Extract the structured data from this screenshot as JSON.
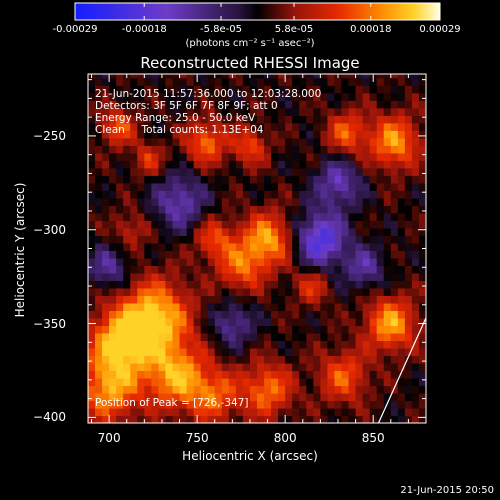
{
  "chart_data": {
    "type": "heatmap",
    "title": "Reconstructed RHESSI Image",
    "xlabel": "Heliocentric X (arcsec)",
    "ylabel": "Heliocentric Y (arcsec)",
    "xlim": [
      688,
      880
    ],
    "ylim": [
      -403,
      -217
    ],
    "xticks": [
      700,
      750,
      800,
      850
    ],
    "yticks": [
      -250,
      -300,
      -350,
      -400
    ],
    "colorbar": {
      "range": [
        -0.00029,
        0.00029
      ],
      "tick_labels": [
        "-0.00029",
        "-0.00018",
        "-5.8e-05",
        "5.8e-05",
        "0.00018",
        "0.00029"
      ],
      "tick_values": [
        -0.00029,
        -0.00018,
        -5.8e-05,
        5.8e-05,
        0.00018,
        0.00029
      ],
      "units_label": "(photons cm⁻² s⁻¹ asec⁻²)"
    },
    "info_lines": [
      "21-Jun-2015 11:57:36.000 to 12:03:28.000",
      "Detectors: 3F 5F 6F 7F 8F 9F; att 0",
      "Energy Range: 25.0 - 50.0 keV",
      "Clean     Total counts: 1.13E+04"
    ],
    "peak_label": "Position of Peak = [726,-347]",
    "peak": [
      726,
      -347
    ],
    "limb_line": [
      [
        853,
        -403
      ],
      [
        880,
        -347
      ]
    ],
    "intensity_map_description": "approximate intensity blobs (x, y, sigma_arcsec, amplitude in units of max)",
    "blobs": [
      [
        726,
        -347,
        14,
        1.0
      ],
      [
        706,
        -360,
        12,
        0.9
      ],
      [
        738,
        -378,
        12,
        0.85
      ],
      [
        700,
        -385,
        12,
        0.8
      ],
      [
        760,
        -388,
        10,
        0.6
      ],
      [
        790,
        -385,
        10,
        0.7
      ],
      [
        833,
        -378,
        10,
        0.6
      ],
      [
        860,
        -350,
        10,
        0.85
      ],
      [
        790,
        -305,
        10,
        0.85
      ],
      [
        760,
        -305,
        8,
        0.55
      ],
      [
        775,
        -320,
        9,
        0.6
      ],
      [
        705,
        -245,
        7,
        0.6
      ],
      [
        755,
        -253,
        8,
        0.7
      ],
      [
        780,
        -255,
        7,
        0.55
      ],
      [
        722,
        -262,
        6,
        0.45
      ],
      [
        862,
        -253,
        10,
        0.8
      ],
      [
        835,
        -248,
        8,
        0.6
      ],
      [
        712,
        -300,
        7,
        0.35
      ],
      [
        815,
        -330,
        7,
        0.45
      ]
    ],
    "dips": [
      [
        820,
        -305,
        10,
        0.9
      ],
      [
        740,
        -285,
        10,
        0.6
      ],
      [
        830,
        -275,
        9,
        0.6
      ],
      [
        700,
        -320,
        8,
        0.5
      ],
      [
        845,
        -320,
        8,
        0.5
      ],
      [
        770,
        -350,
        8,
        0.5
      ]
    ]
  },
  "footer_timestamp": "21-Jun-2015 20:50"
}
